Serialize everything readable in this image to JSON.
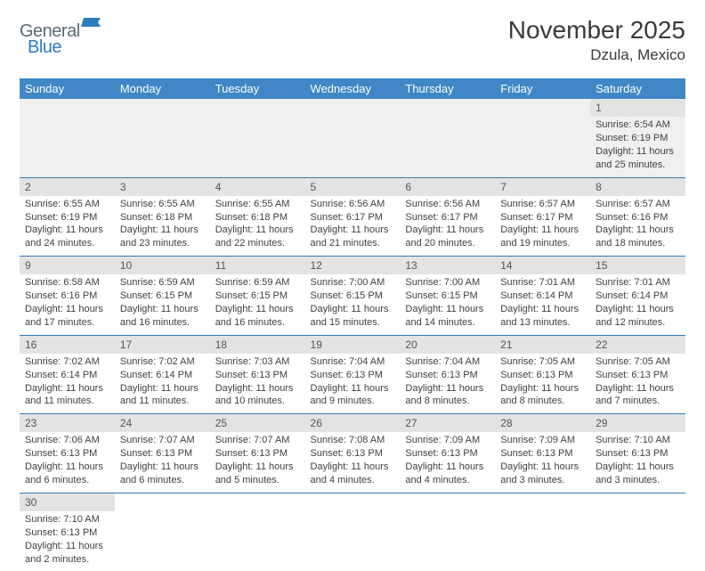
{
  "logo": {
    "part1": "General",
    "part2": "Blue"
  },
  "title": "November 2025",
  "location": "Dzula, Mexico",
  "colors": {
    "header_bg": "#3f87c6",
    "header_fg": "#ffffff",
    "rule": "#2f7bbf",
    "daynum_bg": "#e3e3e3",
    "empty_bg": "#f0f0f0",
    "logo_gray": "#5b6a72",
    "logo_blue": "#2f7bbf"
  },
  "weekdays": [
    "Sunday",
    "Monday",
    "Tuesday",
    "Wednesday",
    "Thursday",
    "Friday",
    "Saturday"
  ],
  "weeks": [
    [
      null,
      null,
      null,
      null,
      null,
      null,
      {
        "n": "1",
        "sr": "Sunrise: 6:54 AM",
        "ss": "Sunset: 6:19 PM",
        "dl": "Daylight: 11 hours and 25 minutes."
      }
    ],
    [
      {
        "n": "2",
        "sr": "Sunrise: 6:55 AM",
        "ss": "Sunset: 6:19 PM",
        "dl": "Daylight: 11 hours and 24 minutes."
      },
      {
        "n": "3",
        "sr": "Sunrise: 6:55 AM",
        "ss": "Sunset: 6:18 PM",
        "dl": "Daylight: 11 hours and 23 minutes."
      },
      {
        "n": "4",
        "sr": "Sunrise: 6:55 AM",
        "ss": "Sunset: 6:18 PM",
        "dl": "Daylight: 11 hours and 22 minutes."
      },
      {
        "n": "5",
        "sr": "Sunrise: 6:56 AM",
        "ss": "Sunset: 6:17 PM",
        "dl": "Daylight: 11 hours and 21 minutes."
      },
      {
        "n": "6",
        "sr": "Sunrise: 6:56 AM",
        "ss": "Sunset: 6:17 PM",
        "dl": "Daylight: 11 hours and 20 minutes."
      },
      {
        "n": "7",
        "sr": "Sunrise: 6:57 AM",
        "ss": "Sunset: 6:17 PM",
        "dl": "Daylight: 11 hours and 19 minutes."
      },
      {
        "n": "8",
        "sr": "Sunrise: 6:57 AM",
        "ss": "Sunset: 6:16 PM",
        "dl": "Daylight: 11 hours and 18 minutes."
      }
    ],
    [
      {
        "n": "9",
        "sr": "Sunrise: 6:58 AM",
        "ss": "Sunset: 6:16 PM",
        "dl": "Daylight: 11 hours and 17 minutes."
      },
      {
        "n": "10",
        "sr": "Sunrise: 6:59 AM",
        "ss": "Sunset: 6:15 PM",
        "dl": "Daylight: 11 hours and 16 minutes."
      },
      {
        "n": "11",
        "sr": "Sunrise: 6:59 AM",
        "ss": "Sunset: 6:15 PM",
        "dl": "Daylight: 11 hours and 16 minutes."
      },
      {
        "n": "12",
        "sr": "Sunrise: 7:00 AM",
        "ss": "Sunset: 6:15 PM",
        "dl": "Daylight: 11 hours and 15 minutes."
      },
      {
        "n": "13",
        "sr": "Sunrise: 7:00 AM",
        "ss": "Sunset: 6:15 PM",
        "dl": "Daylight: 11 hours and 14 minutes."
      },
      {
        "n": "14",
        "sr": "Sunrise: 7:01 AM",
        "ss": "Sunset: 6:14 PM",
        "dl": "Daylight: 11 hours and 13 minutes."
      },
      {
        "n": "15",
        "sr": "Sunrise: 7:01 AM",
        "ss": "Sunset: 6:14 PM",
        "dl": "Daylight: 11 hours and 12 minutes."
      }
    ],
    [
      {
        "n": "16",
        "sr": "Sunrise: 7:02 AM",
        "ss": "Sunset: 6:14 PM",
        "dl": "Daylight: 11 hours and 11 minutes."
      },
      {
        "n": "17",
        "sr": "Sunrise: 7:02 AM",
        "ss": "Sunset: 6:14 PM",
        "dl": "Daylight: 11 hours and 11 minutes."
      },
      {
        "n": "18",
        "sr": "Sunrise: 7:03 AM",
        "ss": "Sunset: 6:13 PM",
        "dl": "Daylight: 11 hours and 10 minutes."
      },
      {
        "n": "19",
        "sr": "Sunrise: 7:04 AM",
        "ss": "Sunset: 6:13 PM",
        "dl": "Daylight: 11 hours and 9 minutes."
      },
      {
        "n": "20",
        "sr": "Sunrise: 7:04 AM",
        "ss": "Sunset: 6:13 PM",
        "dl": "Daylight: 11 hours and 8 minutes."
      },
      {
        "n": "21",
        "sr": "Sunrise: 7:05 AM",
        "ss": "Sunset: 6:13 PM",
        "dl": "Daylight: 11 hours and 8 minutes."
      },
      {
        "n": "22",
        "sr": "Sunrise: 7:05 AM",
        "ss": "Sunset: 6:13 PM",
        "dl": "Daylight: 11 hours and 7 minutes."
      }
    ],
    [
      {
        "n": "23",
        "sr": "Sunrise: 7:06 AM",
        "ss": "Sunset: 6:13 PM",
        "dl": "Daylight: 11 hours and 6 minutes."
      },
      {
        "n": "24",
        "sr": "Sunrise: 7:07 AM",
        "ss": "Sunset: 6:13 PM",
        "dl": "Daylight: 11 hours and 6 minutes."
      },
      {
        "n": "25",
        "sr": "Sunrise: 7:07 AM",
        "ss": "Sunset: 6:13 PM",
        "dl": "Daylight: 11 hours and 5 minutes."
      },
      {
        "n": "26",
        "sr": "Sunrise: 7:08 AM",
        "ss": "Sunset: 6:13 PM",
        "dl": "Daylight: 11 hours and 4 minutes."
      },
      {
        "n": "27",
        "sr": "Sunrise: 7:09 AM",
        "ss": "Sunset: 6:13 PM",
        "dl": "Daylight: 11 hours and 4 minutes."
      },
      {
        "n": "28",
        "sr": "Sunrise: 7:09 AM",
        "ss": "Sunset: 6:13 PM",
        "dl": "Daylight: 11 hours and 3 minutes."
      },
      {
        "n": "29",
        "sr": "Sunrise: 7:10 AM",
        "ss": "Sunset: 6:13 PM",
        "dl": "Daylight: 11 hours and 3 minutes."
      }
    ],
    [
      {
        "n": "30",
        "sr": "Sunrise: 7:10 AM",
        "ss": "Sunset: 6:13 PM",
        "dl": "Daylight: 11 hours and 2 minutes."
      },
      null,
      null,
      null,
      null,
      null,
      null
    ]
  ]
}
